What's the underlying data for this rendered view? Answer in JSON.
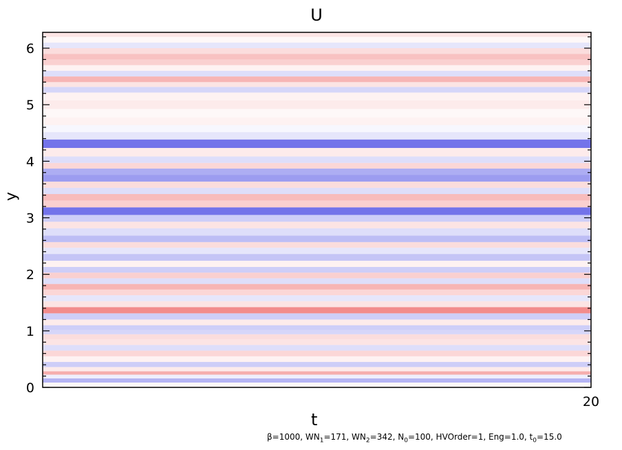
{
  "chart_data": {
    "type": "heatmap",
    "title": "U",
    "xlabel": "t",
    "ylabel": "y",
    "xlim": [
      0,
      20
    ],
    "ylim": [
      0,
      6.28
    ],
    "x_ticks": [
      "20"
    ],
    "y_ticks": [
      "0",
      "1",
      "2",
      "3",
      "4",
      "5",
      "6"
    ],
    "colormap": {
      "negative": "#5a5ae6",
      "zero": "#ffffff",
      "positive": "#f07878"
    },
    "profile": {
      "y": [
        0.05,
        0.12,
        0.2,
        0.25,
        0.32,
        0.4,
        0.5,
        0.6,
        0.7,
        0.8,
        0.9,
        0.98,
        1.05,
        1.15,
        1.25,
        1.37,
        1.47,
        1.58,
        1.68,
        1.78,
        1.88,
        1.98,
        2.08,
        2.18,
        2.3,
        2.42,
        2.52,
        2.62,
        2.75,
        2.88,
        2.98,
        3.12,
        3.25,
        3.36,
        3.48,
        3.58,
        3.7,
        3.82,
        3.92,
        4.02,
        4.15,
        4.32,
        4.45,
        4.58,
        4.7,
        4.85,
        5.0,
        5.15,
        5.28,
        5.35,
        5.45,
        5.55,
        5.65,
        5.75,
        5.85,
        5.95,
        6.05,
        6.15,
        6.25
      ],
      "u": [
        0.05,
        -0.45,
        -0.1,
        0.6,
        0.15,
        -0.3,
        0.1,
        0.3,
        -0.2,
        0.2,
        0.25,
        -0.25,
        -0.3,
        0.15,
        -0.3,
        0.85,
        0.2,
        -0.15,
        0.3,
        0.55,
        -0.2,
        0.35,
        -0.3,
        0.1,
        -0.35,
        -0.15,
        0.25,
        -0.4,
        -0.2,
        0.2,
        -0.3,
        -0.85,
        0.35,
        0.5,
        -0.2,
        0.25,
        -0.6,
        -0.5,
        0.3,
        -0.2,
        0.15,
        -0.85,
        -0.15,
        -0.05,
        0.1,
        0.05,
        0.15,
        0.1,
        -0.25,
        0.2,
        0.55,
        -0.2,
        0.1,
        0.35,
        0.45,
        0.25,
        -0.15,
        0.05,
        0.2
      ]
    }
  }
}
